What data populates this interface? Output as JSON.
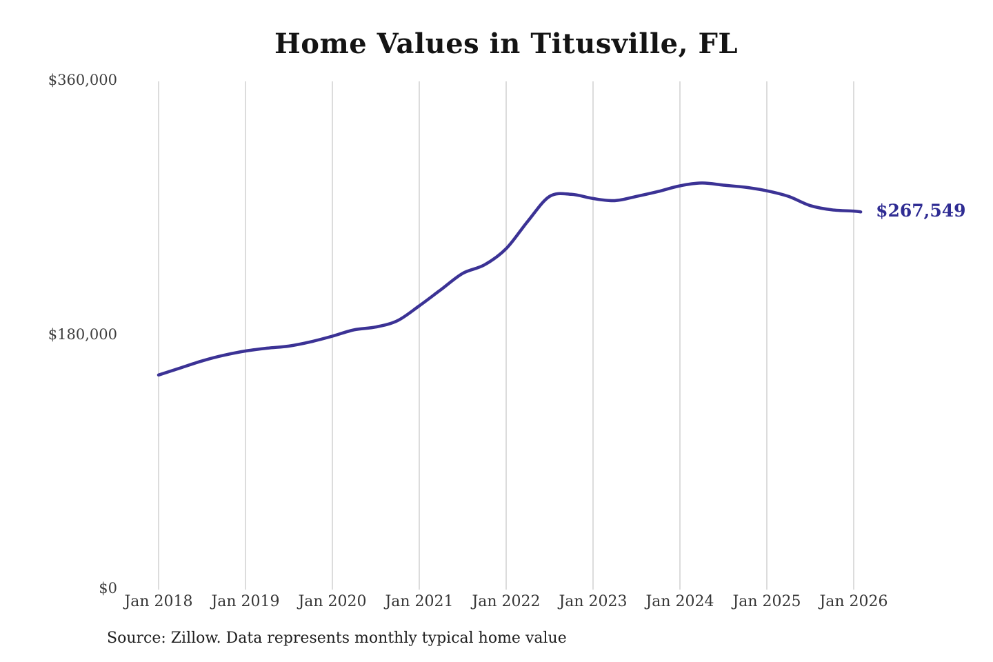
{
  "page": {
    "background": "#ffffff"
  },
  "chart_data": {
    "type": "line",
    "title": "Home Values in Titusville, FL",
    "source_note": "Source: Zillow. Data represents monthly typical home value",
    "end_label": "$267,549",
    "end_value": 267549,
    "xlabel": "",
    "ylabel": "",
    "x_range": [
      2018,
      2026
    ],
    "ylim": [
      0,
      360000
    ],
    "grid": "vertical-only",
    "legend": "none",
    "yticks": [
      {
        "value": 0,
        "label": "$0"
      },
      {
        "value": 180000,
        "label": "$180,000"
      },
      {
        "value": 360000,
        "label": "$360,000"
      }
    ],
    "xticks": [
      {
        "year": 2018,
        "label": "Jan 2018"
      },
      {
        "year": 2019,
        "label": "Jan 2019"
      },
      {
        "year": 2020,
        "label": "Jan 2020"
      },
      {
        "year": 2021,
        "label": "Jan 2021"
      },
      {
        "year": 2022,
        "label": "Jan 2022"
      },
      {
        "year": 2023,
        "label": "Jan 2023"
      },
      {
        "year": 2024,
        "label": "Jan 2024"
      },
      {
        "year": 2025,
        "label": "Jan 2025"
      },
      {
        "year": 2026,
        "label": "Jan 2026"
      }
    ],
    "series": [
      {
        "name": "typical-home-value",
        "points": [
          [
            2018.0,
            152000
          ],
          [
            2018.25,
            157000
          ],
          [
            2018.5,
            162000
          ],
          [
            2018.75,
            166000
          ],
          [
            2019.0,
            169000
          ],
          [
            2019.25,
            171000
          ],
          [
            2019.5,
            172500
          ],
          [
            2019.75,
            175500
          ],
          [
            2020.0,
            179500
          ],
          [
            2020.25,
            184000
          ],
          [
            2020.5,
            186000
          ],
          [
            2020.75,
            190500
          ],
          [
            2021.0,
            201000
          ],
          [
            2021.25,
            212500
          ],
          [
            2021.5,
            224000
          ],
          [
            2021.75,
            230000
          ],
          [
            2022.0,
            241500
          ],
          [
            2022.25,
            261000
          ],
          [
            2022.5,
            278500
          ],
          [
            2022.75,
            280000
          ],
          [
            2023.0,
            277000
          ],
          [
            2023.25,
            275500
          ],
          [
            2023.5,
            278500
          ],
          [
            2023.75,
            282000
          ],
          [
            2024.0,
            286000
          ],
          [
            2024.25,
            288000
          ],
          [
            2024.5,
            286500
          ],
          [
            2024.75,
            285000
          ],
          [
            2025.0,
            282500
          ],
          [
            2025.25,
            278500
          ],
          [
            2025.5,
            272000
          ],
          [
            2025.75,
            269000
          ],
          [
            2026.0,
            268100
          ],
          [
            2026.08,
            267549
          ]
        ]
      }
    ],
    "colors": {
      "line": "#3b3295",
      "end_label": "#2f2c93",
      "grid": "#c9c9c9",
      "axis_text": "#3d3d3d",
      "title_text": "#141414",
      "source_text": "#1f1f1f"
    }
  }
}
